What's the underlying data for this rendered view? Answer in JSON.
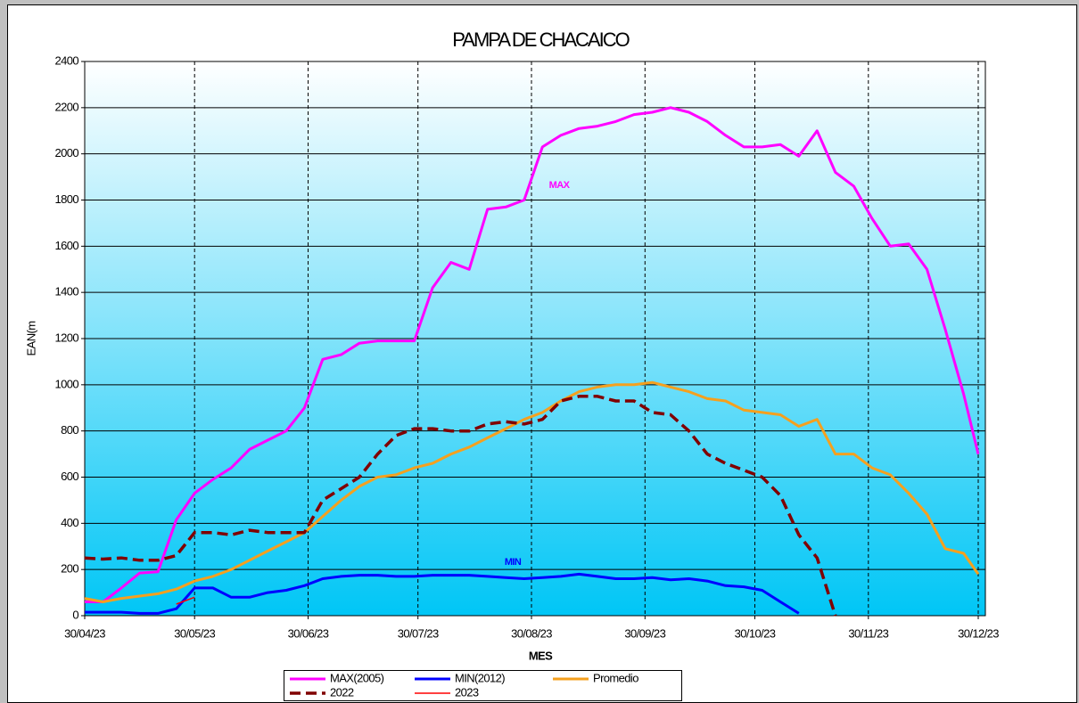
{
  "chart_data": {
    "type": "line",
    "title": "PAMPA DE CHACAICO",
    "x_label": "MES",
    "y_label": "EAN(m",
    "x": [
      "2023-04-30",
      "2023-05-05",
      "2023-05-10",
      "2023-05-15",
      "2023-05-20",
      "2023-05-25",
      "2023-05-30",
      "2023-06-04",
      "2023-06-09",
      "2023-06-14",
      "2023-06-19",
      "2023-06-24",
      "2023-06-29",
      "2023-07-04",
      "2023-07-09",
      "2023-07-14",
      "2023-07-19",
      "2023-07-24",
      "2023-07-29",
      "2023-08-03",
      "2023-08-08",
      "2023-08-13",
      "2023-08-18",
      "2023-08-23",
      "2023-08-28",
      "2023-09-02",
      "2023-09-07",
      "2023-09-12",
      "2023-09-17",
      "2023-09-22",
      "2023-09-27",
      "2023-10-02",
      "2023-10-07",
      "2023-10-12",
      "2023-10-17",
      "2023-10-22",
      "2023-10-27",
      "2023-11-01",
      "2023-11-06",
      "2023-11-11",
      "2023-11-16",
      "2023-11-21",
      "2023-11-26",
      "2023-12-01",
      "2023-12-06",
      "2023-12-11",
      "2023-12-16",
      "2023-12-21",
      "2023-12-26",
      "2023-12-30"
    ],
    "series": [
      {
        "name": "MAX(2005)",
        "color": "#ff00ff",
        "line_style": "solid",
        "values": [
          60,
          60,
          120,
          185,
          190,
          415,
          530,
          590,
          640,
          720,
          760,
          800,
          900,
          1110,
          1130,
          1180,
          1190,
          1190,
          1190,
          1420,
          1530,
          1500,
          1760,
          1770,
          1800,
          2030,
          2080,
          2110,
          2120,
          2140,
          2170,
          2180,
          2200,
          2180,
          2140,
          2080,
          2030,
          2030,
          2040,
          1990,
          2100,
          1920,
          1860,
          1720,
          1600,
          1610,
          1500,
          1240,
          960,
          700
        ]
      },
      {
        "name": "MIN(2012)",
        "color": "#0000ff",
        "line_style": "solid",
        "values": [
          15,
          15,
          15,
          10,
          10,
          30,
          120,
          120,
          80,
          80,
          100,
          110,
          130,
          160,
          170,
          175,
          175,
          170,
          170,
          175,
          175,
          175,
          170,
          165,
          160,
          165,
          170,
          180,
          170,
          160,
          160,
          165,
          155,
          160,
          150,
          130,
          125,
          110,
          60,
          10,
          null,
          null,
          null,
          null,
          null,
          null,
          null,
          null,
          null,
          null
        ]
      },
      {
        "name": "Promedio",
        "color": "#f5a01e",
        "line_style": "solid",
        "values": [
          75,
          60,
          75,
          85,
          95,
          115,
          150,
          170,
          200,
          240,
          280,
          320,
          360,
          430,
          500,
          560,
          600,
          610,
          640,
          660,
          700,
          730,
          770,
          810,
          850,
          880,
          930,
          970,
          990,
          1000,
          1000,
          1010,
          990,
          970,
          940,
          930,
          890,
          880,
          870,
          820,
          850,
          700,
          700,
          640,
          610,
          530,
          440,
          290,
          270,
          180
        ]
      },
      {
        "name": "2022",
        "color": "#800000",
        "line_style": "dashed",
        "values": [
          250,
          245,
          250,
          240,
          240,
          260,
          360,
          360,
          350,
          370,
          360,
          360,
          360,
          500,
          550,
          600,
          700,
          780,
          810,
          810,
          800,
          800,
          830,
          840,
          830,
          850,
          930,
          950,
          950,
          930,
          930,
          880,
          870,
          800,
          700,
          660,
          630,
          600,
          520,
          350,
          250,
          0,
          null,
          null,
          null,
          null,
          null,
          null,
          null,
          null
        ]
      },
      {
        "name": "2023",
        "color": "#ff0000",
        "line_style": "solid",
        "values": [
          null,
          null,
          null,
          null,
          null,
          50,
          80,
          null,
          null,
          null,
          null,
          null,
          null,
          null,
          null,
          null,
          null,
          null,
          null,
          null,
          null,
          null,
          null,
          null,
          null,
          null,
          null,
          null,
          null,
          null,
          null,
          null,
          null,
          null,
          null,
          null,
          null,
          null,
          null,
          null,
          null,
          null,
          null,
          null,
          null,
          null,
          null,
          null,
          null,
          null
        ]
      }
    ],
    "xlim": [
      "2023-04-30",
      "2023-12-30"
    ],
    "xticks": [
      {
        "value": "2023-04-30",
        "label": "30/04/23"
      },
      {
        "value": "2023-05-30",
        "label": "30/05/23"
      },
      {
        "value": "2023-06-30",
        "label": "30/06/23"
      },
      {
        "value": "2023-07-30",
        "label": "30/07/23"
      },
      {
        "value": "2023-08-30",
        "label": "30/08/23"
      },
      {
        "value": "2023-09-30",
        "label": "30/09/23"
      },
      {
        "value": "2023-10-30",
        "label": "30/10/23"
      },
      {
        "value": "2023-11-30",
        "label": "30/11/23"
      },
      {
        "value": "2023-12-30",
        "label": "30/12/23"
      }
    ],
    "ylim": [
      0,
      2400
    ],
    "yticks": [
      0,
      200,
      400,
      600,
      800,
      1000,
      1200,
      1400,
      1600,
      1800,
      2000,
      2200,
      2400
    ],
    "grid": true,
    "annotations": [
      "MAX",
      "MIN"
    ]
  }
}
